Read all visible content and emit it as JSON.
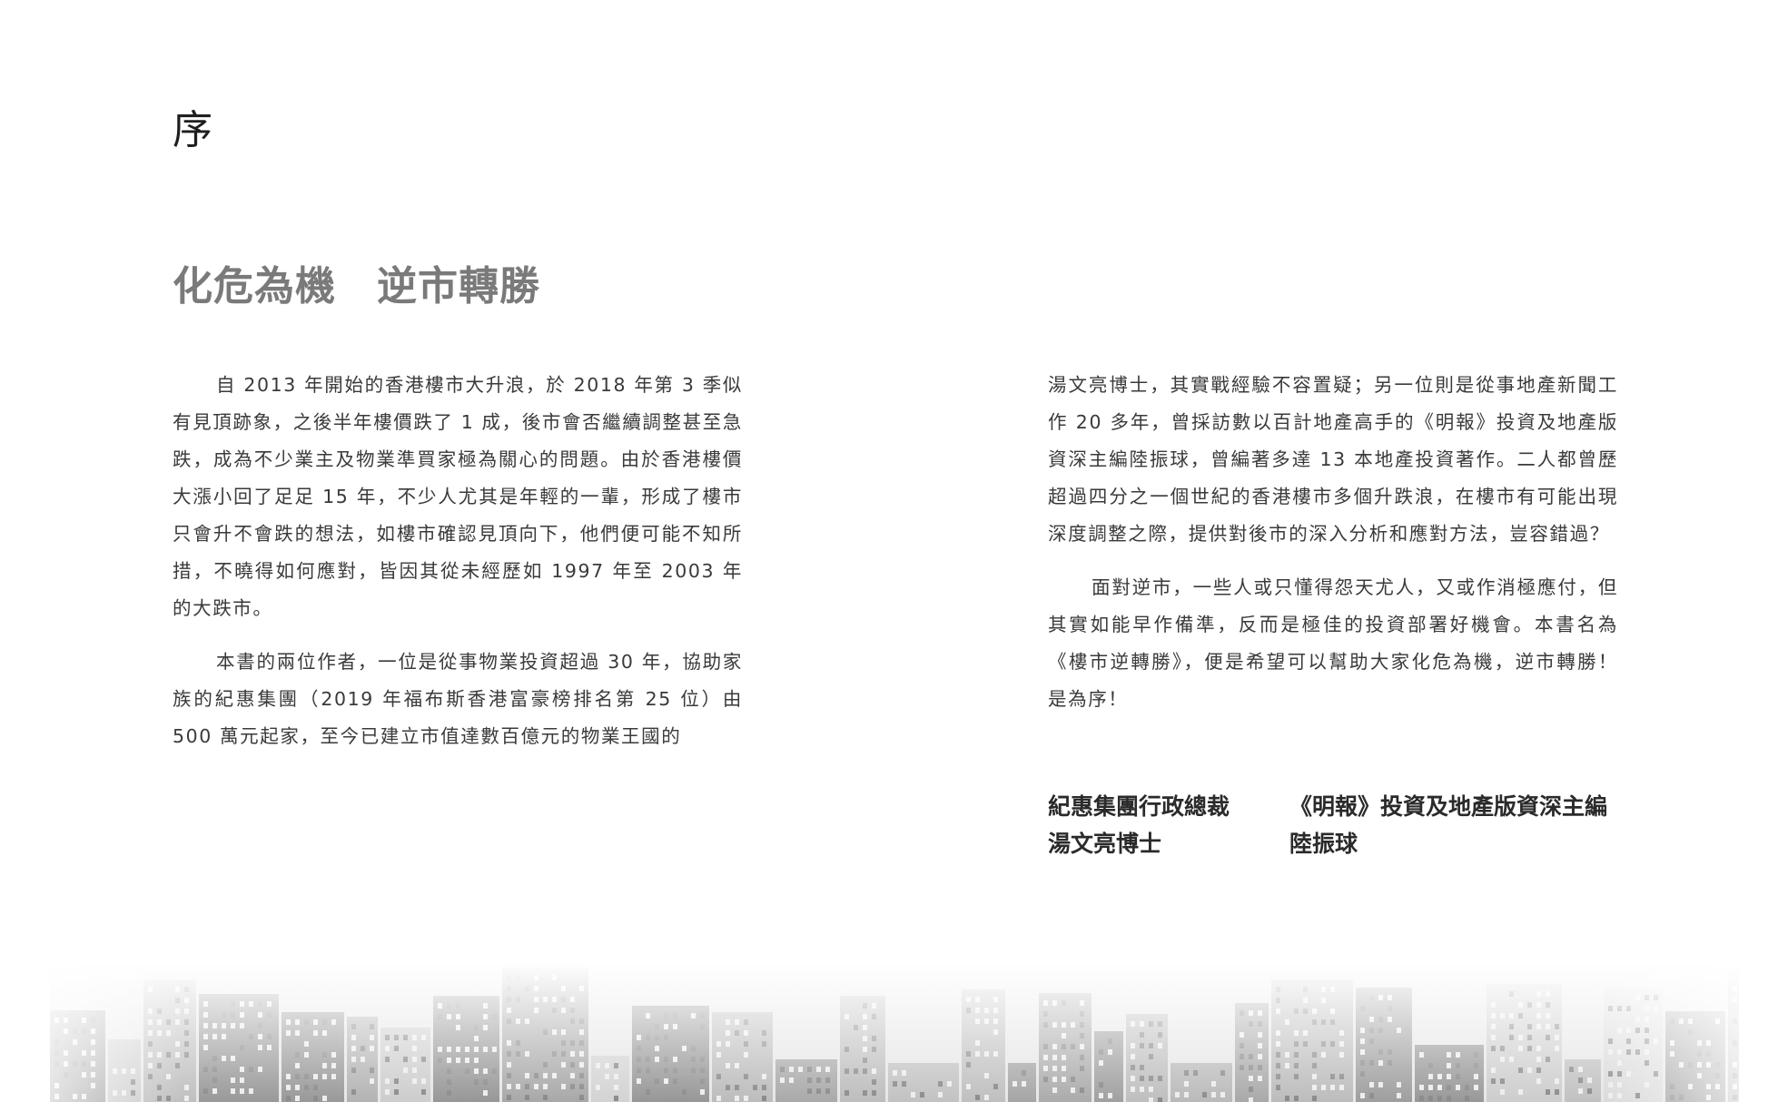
{
  "section_label": "序",
  "headline": "化危為機　逆市轉勝",
  "left_column": [
    "自 2013 年開始的香港樓市大升浪，於 2018 年第 3 季似有見頂跡象，之後半年樓價跌了 1 成，後市會否繼續調整甚至急跌，成為不少業主及物業準買家極為關心的問題。由於香港樓價大漲小回了足足 15 年，不少人尤其是年輕的一輩，形成了樓市只會升不會跌的想法，如樓市確認見頂向下，他們便可能不知所措，不曉得如何應對，皆因其從未經歷如 1997 年至 2003 年的大跌市。",
    "本書的兩位作者，一位是從事物業投資超過 30 年，協助家族的紀惠集團（2019 年福布斯香港富豪榜排名第 25 位）由 500 萬元起家，至今已建立市值達數百億元的物業王國的"
  ],
  "right_column": [
    "湯文亮博士，其實戰經驗不容置疑；另一位則是從事地產新聞工作 20 多年，曾採訪數以百計地產高手的《明報》投資及地產版資深主編陸振球，曾編著多達 13 本地產投資著作。二人都曾歷超過四分之一個世紀的香港樓市多個升跌浪，在樓市有可能出現深度調整之際，提供對後市的深入分析和應對方法，豈容錯過？",
    "面對逆市，一些人或只懂得怨天尤人，又或作消極應付，但其實如能早作備準，反而是極佳的投資部署好機會。本書名為《樓市逆轉勝》，便是希望可以幫助大家化危為機，逆市轉勝！是為序！"
  ],
  "signatures": [
    {
      "role": "紀惠集團行政總裁",
      "name": "湯文亮博士"
    },
    {
      "role": "《明報》投資及地產版資深主編",
      "name": "陸振球"
    }
  ],
  "colors": {
    "heading": "#1e1e1e",
    "headline": "#7a7a7a",
    "body": "#3a3a3a",
    "skyline": "#9a9a9a"
  }
}
